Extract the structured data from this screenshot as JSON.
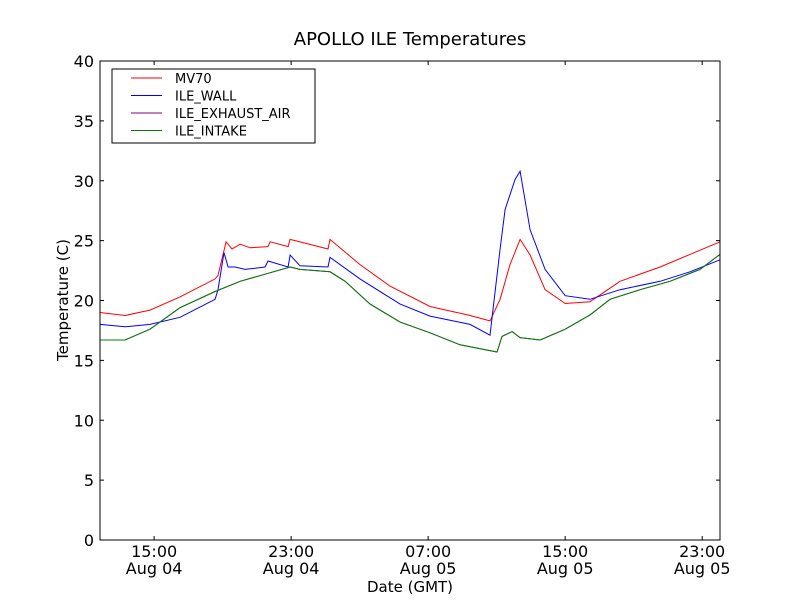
{
  "chart_data": {
    "type": "line",
    "title": "APOLLO ILE Temperatures",
    "xlabel": "Date (GMT)",
    "ylabel": "Temperature (C)",
    "x_units": "hours since Aug 04 00:00 GMT",
    "xlim": [
      11.84,
      48.04
    ],
    "ylim": [
      0,
      40
    ],
    "yticks": [
      0,
      5,
      10,
      15,
      20,
      25,
      30,
      35,
      40
    ],
    "xticks": [
      {
        "value": 15,
        "time": "15:00",
        "date": "Aug 04"
      },
      {
        "value": 23,
        "time": "23:00",
        "date": "Aug 04"
      },
      {
        "value": 31,
        "time": "07:00",
        "date": "Aug 05"
      },
      {
        "value": 39,
        "time": "15:00",
        "date": "Aug 05"
      },
      {
        "value": 47,
        "time": "23:00",
        "date": "Aug 05"
      }
    ],
    "grid": false,
    "legend_position": "top-left",
    "series": [
      {
        "name": "MV70",
        "color": "#ff0000",
        "x": [
          11.84,
          13.3,
          14.76,
          16.51,
          18.56,
          18.73,
          19.2,
          19.55,
          20.02,
          20.6,
          21.65,
          21.77,
          22.82,
          22.94,
          25.15,
          25.27,
          27.02,
          28.77,
          31.11,
          33.45,
          34.61,
          35.2,
          35.78,
          36.37,
          36.95,
          37.83,
          39.0,
          40.45,
          42.2,
          44.54,
          46.29,
          48.04
        ],
        "y": [
          19.0,
          18.75,
          19.2,
          20.3,
          21.8,
          22.1,
          24.9,
          24.3,
          24.7,
          24.4,
          24.5,
          24.9,
          24.5,
          25.1,
          24.3,
          25.1,
          23.0,
          21.2,
          19.5,
          18.75,
          18.3,
          20.1,
          23.0,
          25.1,
          23.8,
          20.9,
          19.75,
          19.9,
          21.6,
          22.8,
          23.85,
          24.9
        ]
      },
      {
        "name": "ILE_WALL",
        "color": "#0000ff",
        "x": [
          11.84,
          13.3,
          14.76,
          16.51,
          18.56,
          18.73,
          19.08,
          19.32,
          19.73,
          20.31,
          21.48,
          21.65,
          22.82,
          22.94,
          23.52,
          25.15,
          25.27,
          27.02,
          29.36,
          31.11,
          33.45,
          34.61,
          35.2,
          35.49,
          36.07,
          36.37,
          36.95,
          37.83,
          39.0,
          40.45,
          42.2,
          44.54,
          46.29,
          48.04
        ],
        "y": [
          18.0,
          17.8,
          18.0,
          18.6,
          20.1,
          20.9,
          24.0,
          22.8,
          22.8,
          22.6,
          22.8,
          23.3,
          22.8,
          23.8,
          22.9,
          22.8,
          23.6,
          21.8,
          19.7,
          18.7,
          18.0,
          17.1,
          24.3,
          27.6,
          30.1,
          30.8,
          25.9,
          22.6,
          20.4,
          20.1,
          20.9,
          21.6,
          22.4,
          23.4
        ]
      },
      {
        "name": "ILE_EXHAUST_AIR",
        "color": "#800080",
        "x": [
          11.84,
          13.3,
          14.76,
          16.51,
          18.56,
          20.02,
          21.48,
          22.94,
          23.52,
          25.27,
          26.15,
          27.61,
          29.36,
          31.11,
          32.86,
          35.02,
          35.31,
          35.9,
          36.37,
          37.54,
          39.0,
          40.45,
          41.62,
          43.37,
          45.12,
          46.87,
          48.04
        ],
        "y": [
          16.7,
          16.7,
          17.6,
          19.4,
          20.75,
          21.6,
          22.2,
          22.8,
          22.6,
          22.4,
          21.6,
          19.7,
          18.2,
          17.3,
          16.3,
          15.7,
          17.0,
          17.4,
          16.9,
          16.7,
          17.6,
          18.8,
          20.1,
          20.9,
          21.6,
          22.6,
          23.85
        ]
      },
      {
        "name": "ILE_INTAKE",
        "color": "#008000",
        "x": [
          11.84,
          13.3,
          14.76,
          16.51,
          18.56,
          20.02,
          21.48,
          22.94,
          23.52,
          25.27,
          26.15,
          27.61,
          29.36,
          31.11,
          32.86,
          35.02,
          35.31,
          35.9,
          36.37,
          37.54,
          39.0,
          40.45,
          41.62,
          43.37,
          45.12,
          46.87,
          48.04
        ],
        "y": [
          16.7,
          16.7,
          17.6,
          19.4,
          20.75,
          21.6,
          22.2,
          22.8,
          22.6,
          22.4,
          21.6,
          19.7,
          18.2,
          17.3,
          16.3,
          15.7,
          17.0,
          17.4,
          16.9,
          16.7,
          17.6,
          18.8,
          20.1,
          20.9,
          21.6,
          22.6,
          23.85
        ]
      }
    ]
  }
}
